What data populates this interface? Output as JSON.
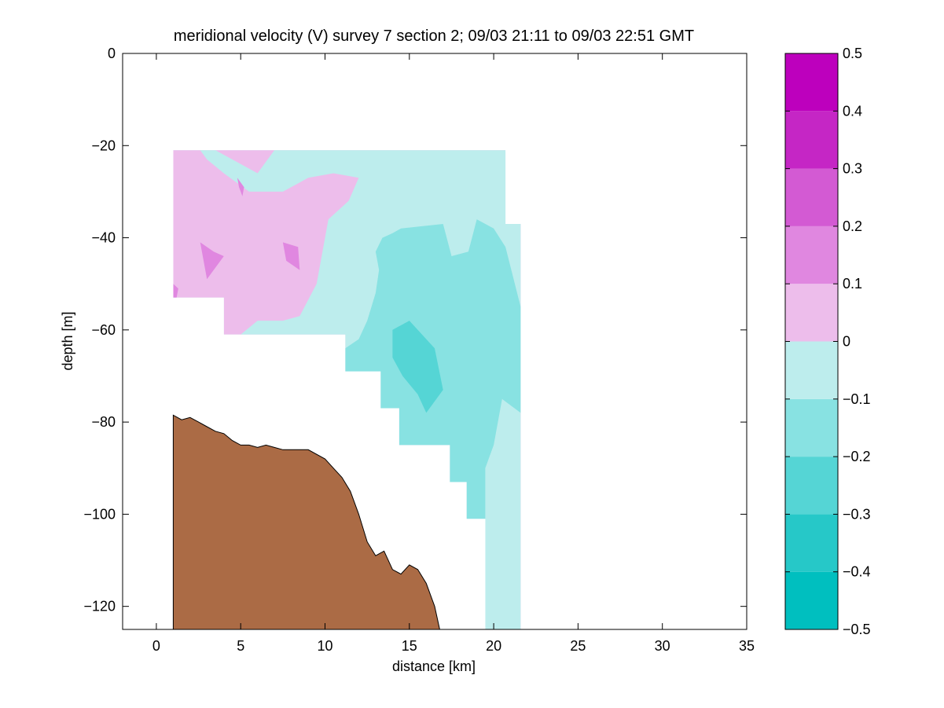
{
  "chart_data": {
    "type": "heatmap",
    "title": "meridional velocity (V) survey 7 section 2; 09/03 21:11 to 09/03 22:51 GMT",
    "xlabel": "distance [km]",
    "ylabel": "depth [m]",
    "xlim": [
      -2,
      35
    ],
    "ylim": [
      -125,
      0
    ],
    "x_ticks": [
      0,
      5,
      10,
      15,
      20,
      25,
      30,
      35
    ],
    "y_ticks": [
      0,
      -20,
      -40,
      -60,
      -80,
      -100,
      -120
    ],
    "x_tick_labels": [
      "0",
      "5",
      "10",
      "15",
      "20",
      "25",
      "30",
      "35"
    ],
    "y_tick_labels": [
      "0",
      "−20",
      "−40",
      "−60",
      "−80",
      "−100",
      "−120"
    ],
    "colorbar": {
      "levels": [
        -0.5,
        -0.4,
        -0.3,
        -0.2,
        -0.1,
        0,
        0.1,
        0.2,
        0.3,
        0.4,
        0.5
      ],
      "tick_labels": [
        "−0.5",
        "−0.4",
        "−0.3",
        "−0.2",
        "−0.1",
        "0",
        "0.1",
        "0.2",
        "0.3",
        "0.4",
        "0.5"
      ],
      "colors": [
        "#00bfbf",
        "#26c8c8",
        "#55d5d5",
        "#88e2e2",
        "#bdeded",
        "#edbdeb",
        "#e087e0",
        "#d35ad3",
        "#c526c5",
        "#bd00bd"
      ]
    },
    "bathymetry": {
      "color": "#ab6b45",
      "x": [
        1.0,
        1.5,
        2.0,
        2.5,
        3.0,
        3.5,
        4.0,
        4.5,
        5.0,
        5.5,
        6.0,
        6.5,
        7.0,
        7.5,
        8.0,
        9.0,
        10.0,
        10.5,
        11.0,
        11.5,
        12.0,
        12.5,
        13.0,
        13.5,
        14.0,
        14.5,
        15.0,
        15.5,
        16.0,
        16.5,
        16.8
      ],
      "depth": [
        -78.5,
        -79.5,
        -79,
        -80,
        -81,
        -82,
        -82.5,
        -84,
        -85,
        -85,
        -85.5,
        -85,
        -85.5,
        -86,
        -86,
        -86,
        -88,
        -90,
        -92,
        -95,
        -100,
        -106,
        -109,
        -108,
        -112,
        -113,
        -111,
        -112,
        -115,
        -120,
        -125
      ]
    },
    "data_mask": {
      "x": [
        1.0,
        1.0,
        4.0,
        4.0,
        11.2,
        11.2,
        13.3,
        13.3,
        14.4,
        14.4,
        17.4,
        17.4,
        18.4,
        18.4,
        19.5,
        19.5,
        21.6,
        21.6,
        20.7,
        20.7
      ],
      "depth": [
        -21,
        -53,
        -53,
        -61,
        -61,
        -69,
        -69,
        -77,
        -77,
        -85,
        -85,
        -93,
        -93,
        -101,
        -101,
        -125,
        -125,
        -37,
        -37,
        -21
      ]
    },
    "background_level": -0.1,
    "contour_regions": [
      {
        "value": 0,
        "x": [
          1.0,
          20.7,
          20.7,
          21.6,
          21.6,
          19.5,
          19.5,
          17.4,
          17.4,
          13.3,
          13.3,
          11.2,
          11.2,
          4.0,
          4.0,
          1.0
        ],
        "depth": [
          -21,
          -21,
          -37,
          -37,
          -125,
          -125,
          -101,
          -101,
          -85,
          -85,
          -69,
          -69,
          -61,
          -61,
          -53,
          -53
        ]
      },
      {
        "value": -0.1,
        "x": [
          2.6,
          3.5,
          6.0,
          7.0,
          13.0,
          20.7,
          21.6,
          21.6,
          19.5,
          19.5,
          17.4,
          17.4,
          14.4,
          14.4,
          11.2,
          11.2,
          5.0,
          6.0,
          7.5,
          8.5,
          9.5,
          10.2,
          11.4,
          12.0,
          10.5,
          9.0,
          7.5,
          5.5,
          4.0,
          3.0
        ],
        "depth": [
          -21,
          -21,
          -26,
          -21,
          -21,
          -21,
          -37,
          -125,
          -125,
          -101,
          -101,
          -85,
          -85,
          -77,
          -77,
          -61,
          -61,
          -58,
          -58,
          -57,
          -50,
          -36,
          -32,
          -27,
          -26,
          -27,
          -30,
          -30,
          -26,
          -23
        ]
      },
      {
        "value": -0.2,
        "x": [
          14.5,
          17.0,
          17.5,
          18.5,
          19.0,
          20.0,
          20.7,
          21.6,
          21.6,
          20.5,
          20.0,
          19.5,
          19.5,
          17.4,
          17.4,
          14.4,
          14.4,
          13.3,
          13.3,
          11.2,
          11.2,
          12.0,
          12.5,
          13.0,
          13.2,
          13.0,
          13.4,
          14.0
        ],
        "depth": [
          -38,
          -37,
          -44,
          -43,
          -36,
          -38,
          -42,
          -55,
          -78,
          -75,
          -85,
          -90,
          -101,
          -101,
          -85,
          -85,
          -77,
          -77,
          -69,
          -69,
          -64,
          -62,
          -58,
          -52,
          -47,
          -43,
          -40,
          -39
        ]
      },
      {
        "value": -0.3,
        "x": [
          14.0,
          15.0,
          16.5,
          17.0,
          16.0,
          15.5,
          14.6,
          14.0
        ],
        "depth": [
          -60,
          -58,
          -64,
          -73,
          -78,
          -74,
          -70,
          -66
        ]
      },
      {
        "value": 0.1,
        "x": [
          2.6,
          3.4,
          4.0,
          3.0
        ],
        "depth": [
          -41,
          -43,
          -44,
          -49
        ]
      },
      {
        "value": 0.1,
        "x": [
          7.5,
          8.4,
          8.5,
          7.7
        ],
        "depth": [
          -41,
          -42,
          -47,
          -45
        ]
      },
      {
        "value": 0.1,
        "x": [
          4.8,
          5.2,
          5.1,
          4.9
        ],
        "depth": [
          -27,
          -29,
          -31,
          -29
        ]
      },
      {
        "value": 0.1,
        "x": [
          1.0,
          1.3,
          1.2,
          1.0
        ],
        "depth": [
          -50,
          -51,
          -53,
          -53
        ]
      }
    ]
  }
}
